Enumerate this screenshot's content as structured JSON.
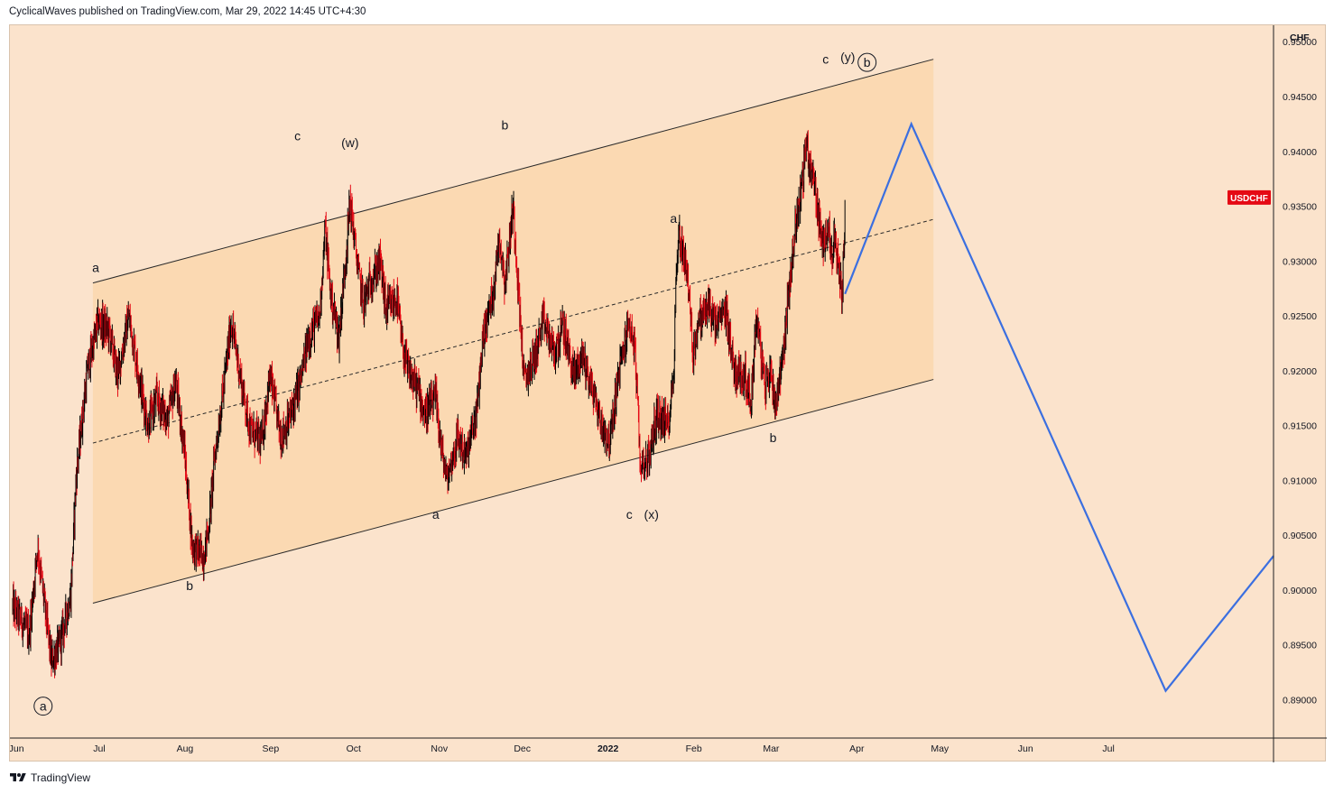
{
  "header": {
    "text": "CyclicalWaves published on TradingView.com, Mar 29, 2022 14:45 UTC+4:30"
  },
  "footer": {
    "brand": "TradingView",
    "logo_icon": "tradingview-logo-icon"
  },
  "chart_data": {
    "type": "line",
    "subtype": "candlestick",
    "symbol": "USDCHF",
    "currency": "CHF",
    "symbol_badge_color": "#e50914",
    "candle_colors": {
      "up": "#000000",
      "down": "#e50914"
    },
    "background_color": "#fbe3cc",
    "channel_fill_color": "#fbd9b2",
    "projection_color": "#3b6fe0",
    "y_ticks": [
      "0.95000",
      "0.94500",
      "0.94000",
      "0.93500",
      "0.93000",
      "0.92500",
      "0.92000",
      "0.91500",
      "0.91000",
      "0.90500",
      "0.90000",
      "0.89500",
      "0.89000"
    ],
    "x_ticks": [
      "Jun",
      "Jul",
      "Aug",
      "Sep",
      "Oct",
      "Nov",
      "Dec",
      "2022",
      "Feb",
      "Mar",
      "Apr",
      "May",
      "Jun",
      "Jul"
    ],
    "ylim": [
      0.8865,
      0.9515
    ],
    "xlim": [
      "2021-05-31",
      "2022-08-31"
    ],
    "price_path": [
      [
        "2021-06-01",
        0.8985
      ],
      [
        "2021-06-07",
        0.896
      ],
      [
        "2021-06-10",
        0.904
      ],
      [
        "2021-06-15",
        0.8935
      ],
      [
        "2021-06-18",
        0.895
      ],
      [
        "2021-06-22",
        0.8995
      ],
      [
        "2021-06-24",
        0.9105
      ],
      [
        "2021-06-28",
        0.92
      ],
      [
        "2021-07-02",
        0.9245
      ],
      [
        "2021-07-06",
        0.9235
      ],
      [
        "2021-07-09",
        0.9195
      ],
      [
        "2021-07-13",
        0.925
      ],
      [
        "2021-07-16",
        0.9205
      ],
      [
        "2021-07-20",
        0.915
      ],
      [
        "2021-07-23",
        0.9175
      ],
      [
        "2021-07-27",
        0.9155
      ],
      [
        "2021-07-30",
        0.919
      ],
      [
        "2021-08-02",
        0.913
      ],
      [
        "2021-08-05",
        0.904
      ],
      [
        "2021-08-09",
        0.903
      ],
      [
        "2021-08-11",
        0.906
      ],
      [
        "2021-08-13",
        0.912
      ],
      [
        "2021-08-17",
        0.92
      ],
      [
        "2021-08-19",
        0.9245
      ],
      [
        "2021-08-23",
        0.9185
      ],
      [
        "2021-08-26",
        0.9145
      ],
      [
        "2021-08-30",
        0.9135
      ],
      [
        "2021-09-02",
        0.9195
      ],
      [
        "2021-09-06",
        0.914
      ],
      [
        "2021-09-09",
        0.9155
      ],
      [
        "2021-09-13",
        0.919
      ],
      [
        "2021-09-16",
        0.923
      ],
      [
        "2021-09-20",
        0.925
      ],
      [
        "2021-09-22",
        0.933
      ],
      [
        "2021-09-24",
        0.927
      ],
      [
        "2021-09-27",
        0.923
      ],
      [
        "2021-09-30",
        0.932
      ],
      [
        "2021-10-01",
        0.9355
      ],
      [
        "2021-10-04",
        0.929
      ],
      [
        "2021-10-06",
        0.926
      ],
      [
        "2021-10-08",
        0.928
      ],
      [
        "2021-10-12",
        0.93
      ],
      [
        "2021-10-14",
        0.9255
      ],
      [
        "2021-10-18",
        0.9265
      ],
      [
        "2021-10-20",
        0.922
      ],
      [
        "2021-10-22",
        0.92
      ],
      [
        "2021-10-26",
        0.918
      ],
      [
        "2021-10-28",
        0.916
      ],
      [
        "2021-11-01",
        0.9175
      ],
      [
        "2021-11-03",
        0.913
      ],
      [
        "2021-11-05",
        0.91
      ],
      [
        "2021-11-09",
        0.914
      ],
      [
        "2021-11-12",
        0.912
      ],
      [
        "2021-11-16",
        0.9165
      ],
      [
        "2021-11-18",
        0.923
      ],
      [
        "2021-11-22",
        0.9275
      ],
      [
        "2021-11-24",
        0.9325
      ],
      [
        "2021-11-26",
        0.928
      ],
      [
        "2021-11-29",
        0.935
      ],
      [
        "2021-12-01",
        0.927
      ],
      [
        "2021-12-03",
        0.919
      ],
      [
        "2021-12-07",
        0.9215
      ],
      [
        "2021-12-10",
        0.9245
      ],
      [
        "2021-12-14",
        0.9215
      ],
      [
        "2021-12-17",
        0.924
      ],
      [
        "2021-12-21",
        0.9195
      ],
      [
        "2021-12-24",
        0.9215
      ],
      [
        "2021-12-28",
        0.918
      ],
      [
        "2021-12-31",
        0.915
      ],
      [
        "2022-01-03",
        0.9135
      ],
      [
        "2022-01-06",
        0.9195
      ],
      [
        "2022-01-10",
        0.9245
      ],
      [
        "2022-01-12",
        0.922
      ],
      [
        "2022-01-14",
        0.9115
      ],
      [
        "2022-01-17",
        0.912
      ],
      [
        "2022-01-20",
        0.916
      ],
      [
        "2022-01-24",
        0.915
      ],
      [
        "2022-01-26",
        0.9195
      ],
      [
        "2022-01-27",
        0.929
      ],
      [
        "2022-01-28",
        0.9325
      ],
      [
        "2022-01-31",
        0.929
      ],
      [
        "2022-02-02",
        0.9215
      ],
      [
        "2022-02-04",
        0.9245
      ],
      [
        "2022-02-08",
        0.926
      ],
      [
        "2022-02-10",
        0.924
      ],
      [
        "2022-02-14",
        0.9255
      ],
      [
        "2022-02-17",
        0.92
      ],
      [
        "2022-02-21",
        0.9195
      ],
      [
        "2022-02-23",
        0.917
      ],
      [
        "2022-02-25",
        0.925
      ],
      [
        "2022-02-28",
        0.9185
      ],
      [
        "2022-03-02",
        0.92
      ],
      [
        "2022-03-04",
        0.917
      ],
      [
        "2022-03-07",
        0.9225
      ],
      [
        "2022-03-09",
        0.928
      ],
      [
        "2022-03-11",
        0.933
      ],
      [
        "2022-03-14",
        0.938
      ],
      [
        "2022-03-15",
        0.941
      ],
      [
        "2022-03-16",
        0.939
      ],
      [
        "2022-03-18",
        0.937
      ],
      [
        "2022-03-21",
        0.931
      ],
      [
        "2022-03-23",
        0.934
      ],
      [
        "2022-03-24",
        0.93
      ],
      [
        "2022-03-25",
        0.932
      ],
      [
        "2022-03-28",
        0.927
      ],
      [
        "2022-03-29",
        0.934
      ]
    ],
    "channel": {
      "upper": [
        [
          "2021-06-30",
          0.928
        ],
        [
          "2022-04-30",
          0.9484
        ]
      ],
      "lower": [
        [
          "2021-06-30",
          0.8988
        ],
        [
          "2022-04-30",
          0.9192
        ]
      ],
      "median": [
        [
          "2021-06-30",
          0.9134
        ],
        [
          "2022-04-30",
          0.9338
        ]
      ]
    },
    "projection": [
      [
        "2022-03-29",
        0.927
      ],
      [
        "2022-04-22",
        0.9425
      ],
      [
        "2022-07-23",
        0.8908
      ],
      [
        "2022-08-31",
        0.9031
      ]
    ],
    "wave_labels": [
      {
        "date": "2021-06-12",
        "price": 0.889,
        "text": "a",
        "circled": true
      },
      {
        "date": "2021-07-01",
        "price": 0.929,
        "text": "a",
        "circled": false
      },
      {
        "date": "2021-08-04",
        "price": 0.9,
        "text": "b",
        "circled": false
      },
      {
        "date": "2021-09-12",
        "price": 0.941,
        "text": "c",
        "circled": false
      },
      {
        "date": "2021-10-01",
        "price": 0.9404,
        "text": "(w)",
        "circled": false
      },
      {
        "date": "2021-11-01",
        "price": 0.9065,
        "text": "a",
        "circled": false
      },
      {
        "date": "2021-11-26",
        "price": 0.942,
        "text": "b",
        "circled": false
      },
      {
        "date": "2022-01-10",
        "price": 0.9065,
        "text": "c",
        "circled": false
      },
      {
        "date": "2022-01-18",
        "price": 0.9065,
        "text": "(x)",
        "circled": false
      },
      {
        "date": "2022-01-26",
        "price": 0.9335,
        "text": "a",
        "circled": false
      },
      {
        "date": "2022-03-03",
        "price": 0.9135,
        "text": "b",
        "circled": false
      },
      {
        "date": "2022-03-22",
        "price": 0.948,
        "text": "c",
        "circled": false
      },
      {
        "date": "2022-03-30",
        "price": 0.9482,
        "text": "(y)",
        "circled": false
      },
      {
        "date": "2022-04-06",
        "price": 0.9477,
        "text": "b",
        "circled": true
      }
    ]
  }
}
